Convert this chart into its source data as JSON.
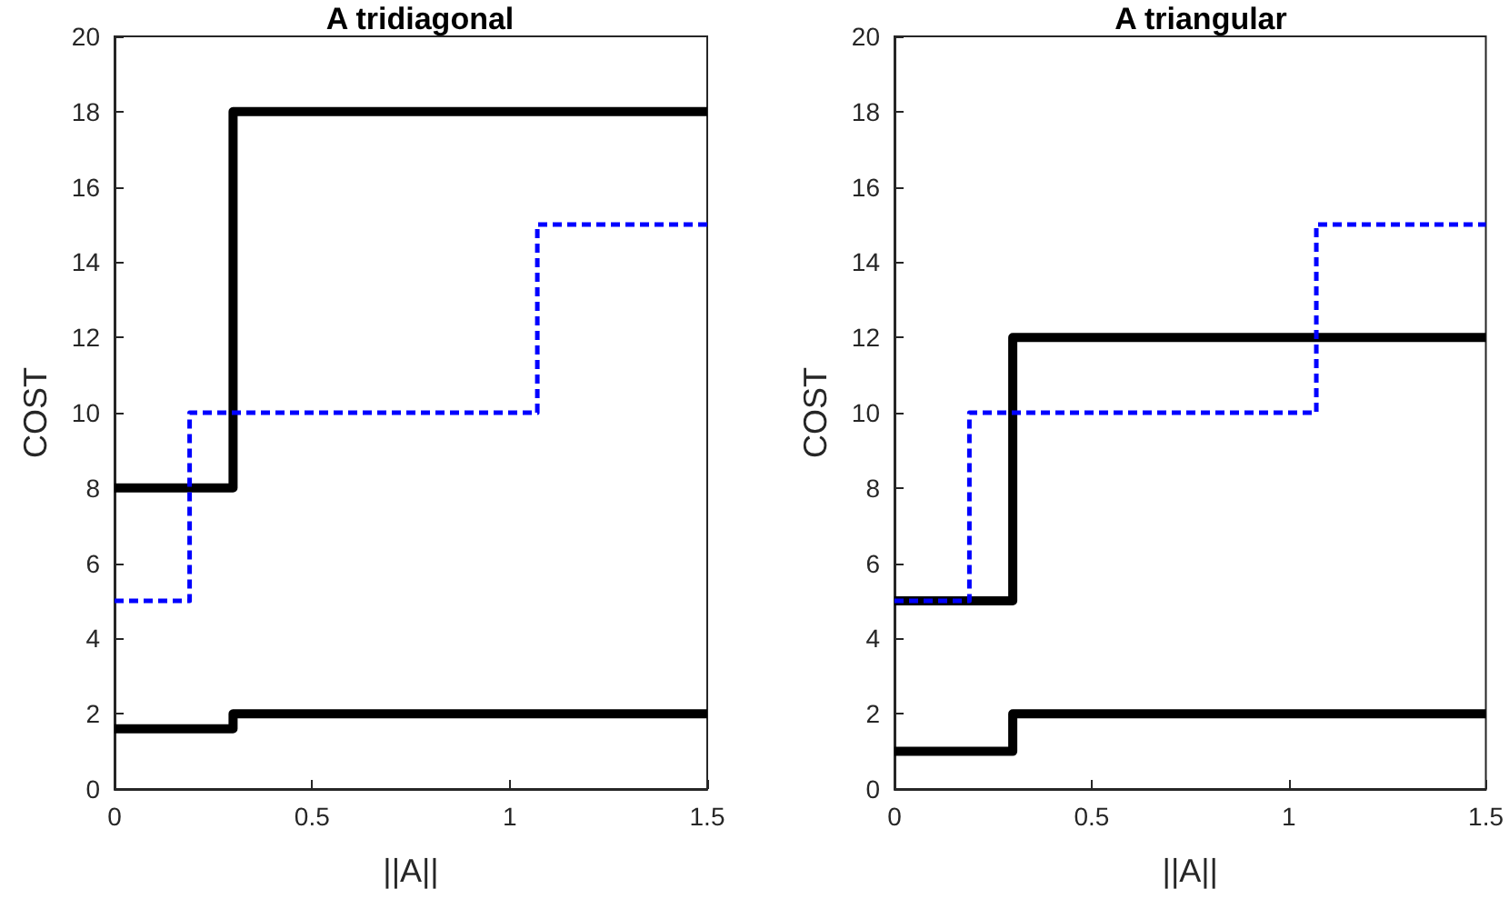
{
  "chart_data": [
    {
      "type": "step",
      "title": "A tridiagonal",
      "xlabel": "||A||",
      "ylabel": "COST",
      "xlim": [
        0,
        1.5
      ],
      "ylim": [
        0,
        20
      ],
      "xticks": [
        0,
        0.5,
        1,
        1.5
      ],
      "yticks": [
        0,
        2,
        4,
        6,
        8,
        10,
        12,
        14,
        16,
        18,
        20
      ],
      "series": [
        {
          "color": "#0000ff",
          "line_style": "dashed",
          "x": [
            0,
            0.19,
            1.07,
            1.5
          ],
          "values": [
            5,
            10,
            15,
            15
          ]
        },
        {
          "color": "#000000",
          "line_style": "solid",
          "x": [
            0,
            0.3,
            1.5
          ],
          "values": [
            8,
            18,
            18
          ]
        },
        {
          "color": "#000000",
          "line_style": "solid",
          "x": [
            0,
            0.3,
            1.5
          ],
          "values": [
            1.6,
            2,
            2
          ]
        }
      ]
    },
    {
      "type": "step",
      "title": "A triangular",
      "xlabel": "||A||",
      "ylabel": "COST",
      "xlim": [
        0,
        1.5
      ],
      "ylim": [
        0,
        20
      ],
      "xticks": [
        0,
        0.5,
        1,
        1.5
      ],
      "yticks": [
        0,
        2,
        4,
        6,
        8,
        10,
        12,
        14,
        16,
        18,
        20
      ],
      "series": [
        {
          "color": "#0000ff",
          "line_style": "dashed",
          "x": [
            0,
            0.19,
            1.07,
            1.5
          ],
          "values": [
            5,
            10,
            15,
            15
          ]
        },
        {
          "color": "#000000",
          "line_style": "solid",
          "x": [
            0,
            0.3,
            1.5
          ],
          "values": [
            5,
            12,
            12
          ]
        },
        {
          "color": "#000000",
          "line_style": "solid",
          "x": [
            0,
            0.3,
            1.5
          ],
          "values": [
            1,
            2,
            2
          ]
        }
      ]
    }
  ]
}
